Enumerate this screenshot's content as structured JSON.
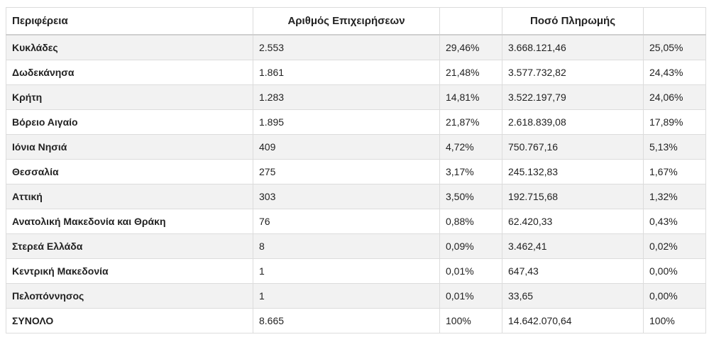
{
  "table": {
    "headers": [
      "Περιφέρεια",
      "Αριθμός Επιχειρήσεων",
      "",
      "Ποσό Πληρωμής",
      ""
    ],
    "rows": [
      [
        "Κυκλάδες",
        "2.553",
        "29,46%",
        "3.668.121,46",
        "25,05%"
      ],
      [
        "Δωδεκάνησα",
        "1.861",
        "21,48%",
        "3.577.732,82",
        "24,43%"
      ],
      [
        "Κρήτη",
        "1.283",
        "14,81%",
        "3.522.197,79",
        "24,06%"
      ],
      [
        "Βόρειο Αιγαίο",
        "1.895",
        "21,87%",
        "2.618.839,08",
        "17,89%"
      ],
      [
        "Ιόνια Νησιά",
        "409",
        "4,72%",
        "750.767,16",
        "5,13%"
      ],
      [
        "Θεσσαλία",
        "275",
        "3,17%",
        "245.132,83",
        "1,67%"
      ],
      [
        "Αττική",
        "303",
        "3,50%",
        "192.715,68",
        "1,32%"
      ],
      [
        "Ανατολική Μακεδονία και Θράκη",
        "76",
        "0,88%",
        "62.420,33",
        "0,43%"
      ],
      [
        "Στερεά Ελλάδα",
        "8",
        "0,09%",
        "3.462,41",
        "0,02%"
      ],
      [
        "Κεντρική Μακεδονία",
        "1",
        "0,01%",
        "647,43",
        "0,00%"
      ],
      [
        "Πελοπόννησος",
        "1",
        "0,01%",
        "33,65",
        "0,00%"
      ],
      [
        "ΣΥΝΟΛΟ",
        "8.665",
        "100%",
        "14.642.070,64",
        "100%"
      ]
    ]
  }
}
